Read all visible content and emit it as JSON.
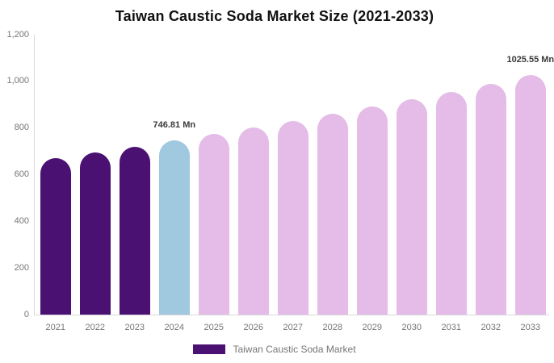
{
  "title": "Taiwan Caustic Soda Market Size (2021-2033)",
  "legend": {
    "label": "Taiwan Caustic Soda Market"
  },
  "colors": {
    "historical": "#4a1172",
    "base_year": "#a0c8df",
    "forecast": "#e4bce7",
    "axis_line": "#d9d9d9",
    "tick_text": "#757575",
    "annotation_text": "#3b3b3b",
    "title_text": "#111111",
    "background": "#ffffff"
  },
  "chart_data": {
    "type": "bar",
    "title": "Taiwan Caustic Soda Market Size (2021-2033)",
    "unit": "Mn",
    "categories": [
      "2021",
      "2022",
      "2023",
      "2024",
      "2025",
      "2026",
      "2027",
      "2028",
      "2029",
      "2030",
      "2031",
      "2032",
      "2033"
    ],
    "values": [
      671.9,
      696.0,
      720.9,
      746.81,
      773.6,
      801.3,
      830.1,
      859.9,
      890.7,
      922.7,
      955.8,
      990.0,
      1025.55
    ],
    "bar_roles": [
      "historical",
      "historical",
      "historical",
      "base_year",
      "forecast",
      "forecast",
      "forecast",
      "forecast",
      "forecast",
      "forecast",
      "forecast",
      "forecast",
      "forecast"
    ],
    "annotations": [
      {
        "index": 3,
        "text": "746.81 Mn"
      },
      {
        "index": 12,
        "text": "1025.55 Mn"
      }
    ],
    "ylim": [
      0,
      1200
    ],
    "ytick_values": [
      0,
      200,
      400,
      600,
      800,
      1000,
      1200
    ],
    "ytick_labels": [
      "0",
      "200",
      "400",
      "600",
      "800",
      "1,000",
      "1,200"
    ],
    "xlabel": "",
    "ylabel": "",
    "grid": false,
    "legend_position": "bottom",
    "legend_entries": [
      {
        "label": "Taiwan Caustic Soda Market",
        "color_role": "historical"
      }
    ]
  }
}
